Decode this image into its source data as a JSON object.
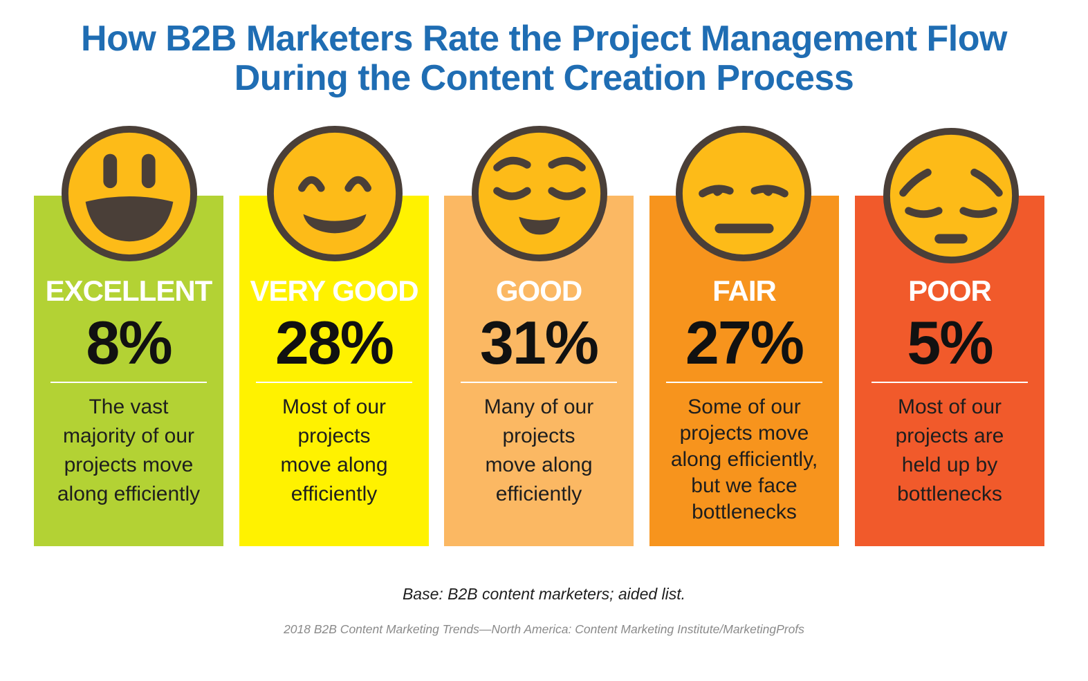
{
  "chart_data": {
    "type": "bar",
    "title": "How B2B Marketers Rate the Project Management Flow During the Content Creation Process",
    "title_lines": [
      "How B2B Marketers Rate the Project Management Flow",
      "During the Content Creation Process"
    ],
    "categories": [
      "EXCELLENT",
      "VERY GOOD",
      "GOOD",
      "FAIR",
      "POOR"
    ],
    "values": [
      8,
      28,
      31,
      27,
      5
    ],
    "value_labels": [
      "8%",
      "28%",
      "31%",
      "27%",
      "5%"
    ],
    "descriptions": [
      [
        "The vast",
        "majority of our",
        "projects move",
        "along efficiently"
      ],
      [
        "Most of our",
        "projects",
        "move along",
        "efficiently"
      ],
      [
        "Many of our",
        "projects",
        "move along",
        "efficiently"
      ],
      [
        "Some of our",
        "projects move",
        "along efficiently,",
        "but we face",
        "bottlenecks"
      ],
      [
        "Most of our",
        "projects are",
        "held up by",
        "bottlenecks"
      ]
    ],
    "faces": [
      "big-grin-face-icon",
      "happy-closed-eyes-face-icon",
      "relieved-face-icon",
      "unamused-face-icon",
      "pensive-face-icon"
    ],
    "colors": [
      "#b3d234",
      "#fff200",
      "#fbb863",
      "#f7941d",
      "#f15a2b"
    ],
    "unit": "%",
    "base_note": "Base: B2B content marketers; aided list.",
    "source": "2018 B2B Content Marketing Trends—North America: Content Marketing Institute/MarketingProfs"
  },
  "style": {
    "title_color": "#1f6db3",
    "face_fill": "#fdbb18",
    "face_outline": "#4a3f38"
  }
}
